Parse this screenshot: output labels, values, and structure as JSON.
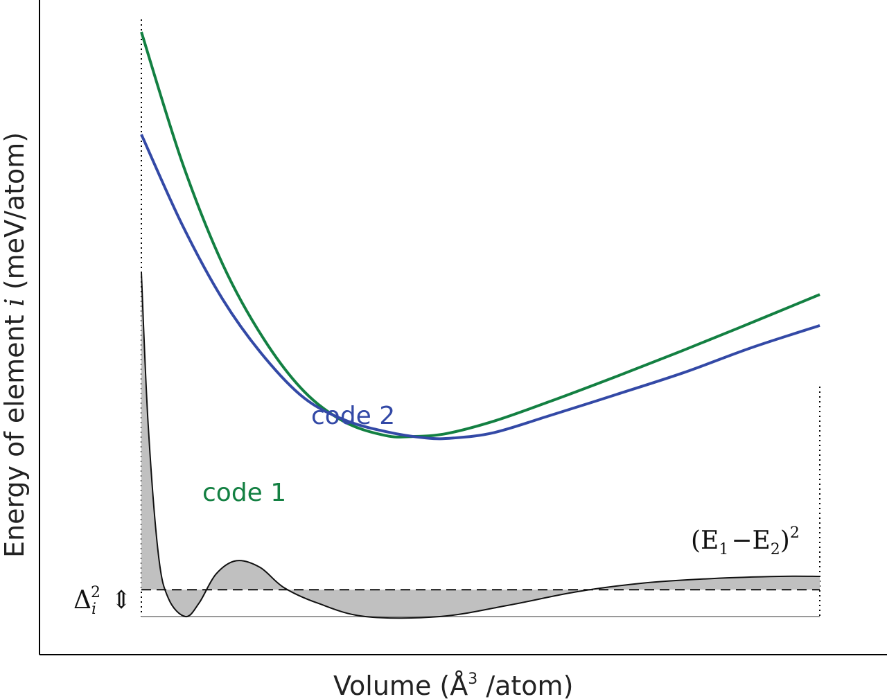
{
  "chart_data": {
    "type": "line",
    "xlabel_prefix": "Volume (Å",
    "xlabel_sup": "3",
    "xlabel_suffix": " /atom)",
    "ylabel_prefix": "Energy of element ",
    "ylabel_var": "i",
    "ylabel_suffix": " (meV/atom)",
    "grid": false,
    "legend": "none",
    "x_range": [
      0,
      1
    ],
    "y_range": [
      0,
      1
    ],
    "series": [
      {
        "name": "code 1",
        "color": "#138042",
        "x": [
          0.0,
          0.06,
          0.12,
          0.18,
          0.24,
          0.3,
          0.36,
          0.4,
          0.45,
          0.52,
          0.6,
          0.7,
          0.8,
          0.9,
          1.0
        ],
        "y": [
          0.975,
          0.715,
          0.51,
          0.362,
          0.256,
          0.195,
          0.168,
          0.166,
          0.172,
          0.197,
          0.235,
          0.286,
          0.339,
          0.394,
          0.45
        ]
      },
      {
        "name": "code 2",
        "color": "#3349a6",
        "x": [
          0.0,
          0.06,
          0.12,
          0.18,
          0.24,
          0.3,
          0.36,
          0.42,
          0.46,
          0.52,
          0.6,
          0.7,
          0.8,
          0.9,
          1.0
        ],
        "y": [
          0.77,
          0.59,
          0.44,
          0.327,
          0.243,
          0.199,
          0.176,
          0.163,
          0.163,
          0.174,
          0.207,
          0.25,
          0.294,
          0.344,
          0.388
        ]
      }
    ],
    "difference": {
      "label_lhs": "(E",
      "label_sub1": "1",
      "label_mid": "−E",
      "label_sub2": "2",
      "label_rhs": ")",
      "label_exp": "2",
      "fill_color": "#c0c0c0",
      "x": [
        0.0,
        0.01,
        0.025,
        0.04,
        0.065,
        0.085,
        0.11,
        0.14,
        0.175,
        0.21,
        0.26,
        0.33,
        0.44,
        0.54,
        0.64,
        0.74,
        0.84,
        0.94,
        1.0
      ],
      "y": [
        0.77,
        0.43,
        0.14,
        0.04,
        0.0,
        0.03,
        0.095,
        0.125,
        0.11,
        0.065,
        0.03,
        0.0,
        0.0,
        0.025,
        0.055,
        0.075,
        0.085,
        0.09,
        0.09
      ]
    },
    "mean_line": {
      "y": 0.06,
      "delta_base": "Δ",
      "delta_sub": "i",
      "delta_sup": "2",
      "arrow_glyph": "⇕"
    }
  }
}
